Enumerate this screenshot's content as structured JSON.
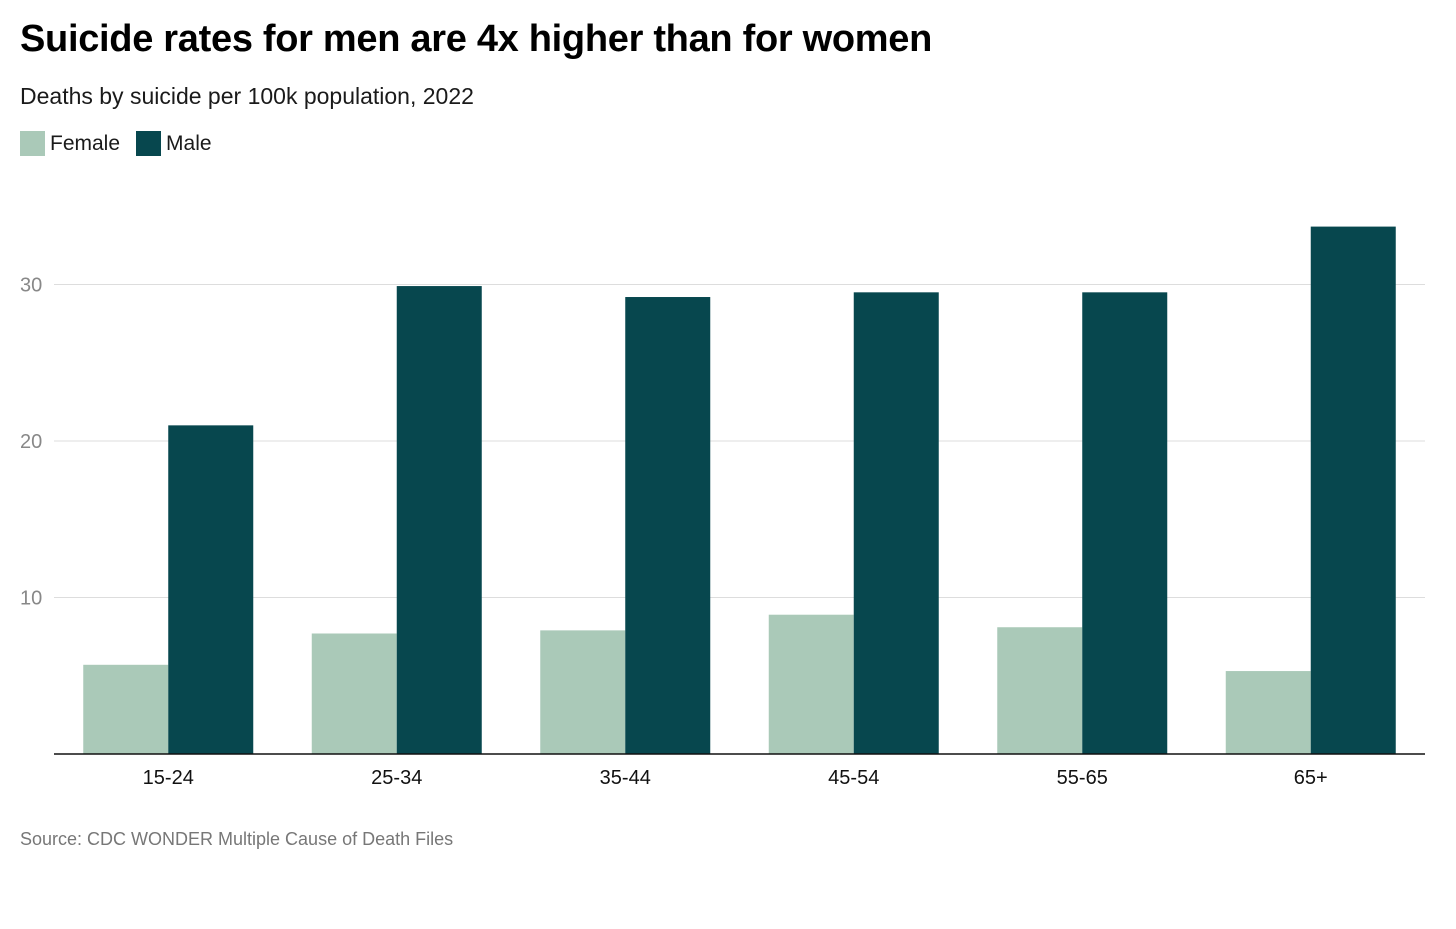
{
  "title": "Suicide rates for men are 4x higher than for women",
  "subtitle": "Deaths by suicide per 100k population, 2022",
  "source": "Source: CDC WONDER Multiple Cause of Death Files",
  "colors": {
    "female": "#aac9b8",
    "male": "#07474e",
    "grid": "#dddddd",
    "axis": "#111111",
    "tick_label": "#888888"
  },
  "chart_data": {
    "type": "bar",
    "title": "Suicide rates for men are 4x higher than for women",
    "subtitle": "Deaths by suicide per 100k population, 2022",
    "xlabel": "",
    "ylabel": "",
    "categories": [
      "15-24",
      "25-34",
      "35-44",
      "45-54",
      "55-65",
      "65+"
    ],
    "series": [
      {
        "name": "Female",
        "values": [
          5.7,
          7.7,
          7.9,
          8.9,
          8.1,
          5.3
        ]
      },
      {
        "name": "Male",
        "values": [
          21.0,
          29.9,
          29.2,
          29.5,
          29.5,
          33.7
        ]
      }
    ],
    "yticks": [
      10,
      20,
      30
    ],
    "ylim": [
      0,
      35
    ],
    "grid": true,
    "legend": "top-left"
  }
}
